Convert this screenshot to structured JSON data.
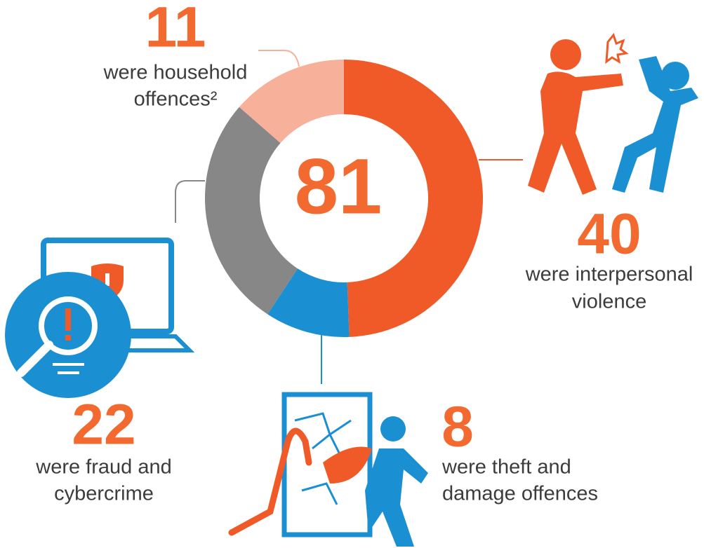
{
  "chart_data": {
    "type": "donut",
    "total": 81,
    "categories": [
      [
        "were interpersonal",
        "violence"
      ],
      [
        "were theft and",
        "damage offences"
      ],
      [
        "were fraud and",
        "cybercrime"
      ],
      [
        "were household",
        "offences²"
      ]
    ],
    "values": [
      40,
      8,
      22,
      11
    ],
    "colors": [
      "#f05a28",
      "#1a8fd1",
      "#878787",
      "#f7b09a"
    ],
    "label_color": "#f26a30"
  }
}
